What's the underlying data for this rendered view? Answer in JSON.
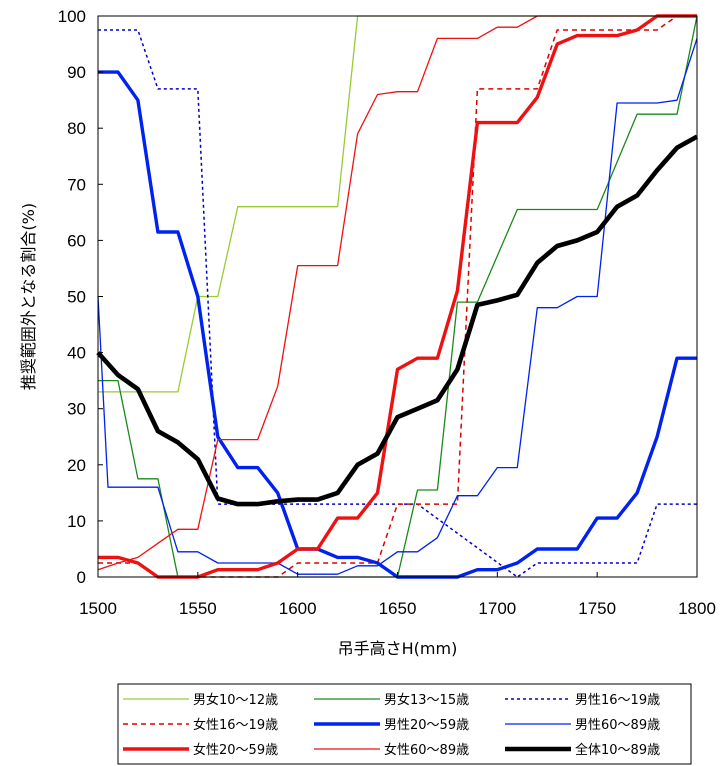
{
  "chart_data": {
    "type": "line",
    "xlabel": "吊手高さH(mm)",
    "ylabel": "推奨範囲外となる割合(%)",
    "xlim": [
      1500,
      1800
    ],
    "ylim": [
      0,
      100
    ],
    "xticks": [
      1500,
      1550,
      1600,
      1650,
      1700,
      1750,
      1800
    ],
    "yticks": [
      0,
      10,
      20,
      30,
      40,
      50,
      60,
      70,
      80,
      90,
      100
    ],
    "grid": false,
    "legend_position": "bottom",
    "series": [
      {
        "name": "男女10～12歳",
        "color": "#99cc33",
        "style": "solid",
        "width": 1.3,
        "points": [
          [
            1500,
            33
          ],
          [
            1540,
            33
          ],
          [
            1550,
            50
          ],
          [
            1560,
            50
          ],
          [
            1570,
            66
          ],
          [
            1620,
            66
          ],
          [
            1630,
            100
          ],
          [
            1800,
            100
          ]
        ]
      },
      {
        "name": "男女13～15歳",
        "color": "#1a8a1a",
        "style": "solid",
        "width": 1.3,
        "points": [
          [
            1500,
            35
          ],
          [
            1510,
            35
          ],
          [
            1520,
            17.5
          ],
          [
            1530,
            17.5
          ],
          [
            1540,
            0
          ],
          [
            1650,
            0
          ],
          [
            1660,
            15.5
          ],
          [
            1670,
            15.5
          ],
          [
            1680,
            49
          ],
          [
            1690,
            49
          ],
          [
            1710,
            65.5
          ],
          [
            1750,
            65.5
          ],
          [
            1770,
            82.5
          ],
          [
            1790,
            82.5
          ],
          [
            1800,
            100
          ]
        ]
      },
      {
        "name": "男性16～19歳",
        "color": "#0000cc",
        "style": "dotted",
        "width": 1.5,
        "points": [
          [
            1500,
            97.5
          ],
          [
            1520,
            97.5
          ],
          [
            1530,
            87
          ],
          [
            1550,
            87
          ],
          [
            1560,
            13
          ],
          [
            1660,
            13
          ],
          [
            1710,
            0
          ],
          [
            1720,
            2.5
          ],
          [
            1770,
            2.5
          ],
          [
            1780,
            13
          ],
          [
            1800,
            13
          ]
        ]
      },
      {
        "name": "女性16～19歳",
        "color": "#dd0000",
        "style": "dashed",
        "width": 1.5,
        "points": [
          [
            1500,
            2.5
          ],
          [
            1520,
            2.5
          ],
          [
            1530,
            0
          ],
          [
            1590,
            0
          ],
          [
            1600,
            2.5
          ],
          [
            1640,
            2.5
          ],
          [
            1650,
            13
          ],
          [
            1680,
            13
          ],
          [
            1690,
            87
          ],
          [
            1720,
            87
          ],
          [
            1730,
            97.5
          ],
          [
            1780,
            97.5
          ],
          [
            1790,
            100
          ],
          [
            1800,
            100
          ]
        ]
      },
      {
        "name": "男性20～59歳",
        "color": "#0022ee",
        "style": "solid",
        "width": 3.4,
        "points": [
          [
            1500,
            90
          ],
          [
            1510,
            90
          ],
          [
            1520,
            85
          ],
          [
            1530,
            61.5
          ],
          [
            1540,
            61.5
          ],
          [
            1550,
            50
          ],
          [
            1560,
            25
          ],
          [
            1570,
            19.5
          ],
          [
            1580,
            19.5
          ],
          [
            1590,
            15
          ],
          [
            1600,
            5
          ],
          [
            1610,
            5
          ],
          [
            1620,
            3.5
          ],
          [
            1630,
            3.5
          ],
          [
            1640,
            2.5
          ],
          [
            1650,
            0
          ],
          [
            1680,
            0
          ],
          [
            1690,
            1.3
          ],
          [
            1700,
            1.3
          ],
          [
            1710,
            2.5
          ],
          [
            1720,
            5
          ],
          [
            1740,
            5
          ],
          [
            1750,
            10.5
          ],
          [
            1760,
            10.5
          ],
          [
            1770,
            15
          ],
          [
            1780,
            25
          ],
          [
            1790,
            39
          ],
          [
            1800,
            39
          ]
        ]
      },
      {
        "name": "男性60～89歳",
        "color": "#0022ee",
        "style": "solid",
        "width": 1.3,
        "points": [
          [
            1500,
            50
          ],
          [
            1505,
            16
          ],
          [
            1520,
            16
          ],
          [
            1530,
            16
          ],
          [
            1540,
            4.5
          ],
          [
            1550,
            4.5
          ],
          [
            1560,
            2.5
          ],
          [
            1590,
            2.5
          ],
          [
            1600,
            0.5
          ],
          [
            1620,
            0.5
          ],
          [
            1630,
            2
          ],
          [
            1640,
            2
          ],
          [
            1650,
            4.5
          ],
          [
            1660,
            4.5
          ],
          [
            1670,
            7
          ],
          [
            1680,
            14.5
          ],
          [
            1690,
            14.5
          ],
          [
            1700,
            19.5
          ],
          [
            1710,
            19.5
          ],
          [
            1720,
            48
          ],
          [
            1730,
            48
          ],
          [
            1740,
            50
          ],
          [
            1750,
            50
          ],
          [
            1760,
            84.5
          ],
          [
            1780,
            84.5
          ],
          [
            1790,
            85
          ],
          [
            1800,
            96
          ]
        ]
      },
      {
        "name": "女性20～59歳",
        "color": "#ee1111",
        "style": "solid",
        "width": 3.4,
        "points": [
          [
            1500,
            3.5
          ],
          [
            1510,
            3.5
          ],
          [
            1520,
            2.5
          ],
          [
            1530,
            0
          ],
          [
            1550,
            0
          ],
          [
            1560,
            1.3
          ],
          [
            1580,
            1.3
          ],
          [
            1590,
            2.5
          ],
          [
            1600,
            5
          ],
          [
            1610,
            5
          ],
          [
            1620,
            10.5
          ],
          [
            1630,
            10.5
          ],
          [
            1640,
            15
          ],
          [
            1650,
            37
          ],
          [
            1660,
            39
          ],
          [
            1670,
            39
          ],
          [
            1680,
            51
          ],
          [
            1690,
            81
          ],
          [
            1710,
            81
          ],
          [
            1720,
            85.5
          ],
          [
            1730,
            95
          ],
          [
            1740,
            96.5
          ],
          [
            1760,
            96.5
          ],
          [
            1770,
            97.5
          ],
          [
            1780,
            100
          ],
          [
            1800,
            100
          ]
        ]
      },
      {
        "name": "女性60～89歳",
        "color": "#ee1111",
        "style": "solid",
        "width": 1.3,
        "points": [
          [
            1500,
            1.3
          ],
          [
            1510,
            2.5
          ],
          [
            1520,
            3.5
          ],
          [
            1530,
            6
          ],
          [
            1540,
            8.5
          ],
          [
            1550,
            8.5
          ],
          [
            1560,
            24.5
          ],
          [
            1580,
            24.5
          ],
          [
            1590,
            34
          ],
          [
            1600,
            55.5
          ],
          [
            1620,
            55.5
          ],
          [
            1630,
            79
          ],
          [
            1640,
            86
          ],
          [
            1650,
            86.5
          ],
          [
            1660,
            86.5
          ],
          [
            1670,
            96
          ],
          [
            1690,
            96
          ],
          [
            1700,
            98
          ],
          [
            1710,
            98
          ],
          [
            1720,
            100
          ],
          [
            1800,
            100
          ]
        ]
      },
      {
        "name": "全体10～89歳",
        "color": "#000000",
        "style": "solid",
        "width": 4.6,
        "points": [
          [
            1500,
            40
          ],
          [
            1510,
            36
          ],
          [
            1520,
            33.5
          ],
          [
            1530,
            26
          ],
          [
            1540,
            24
          ],
          [
            1550,
            21
          ],
          [
            1560,
            14
          ],
          [
            1570,
            13
          ],
          [
            1580,
            13
          ],
          [
            1590,
            13.5
          ],
          [
            1600,
            13.8
          ],
          [
            1610,
            13.8
          ],
          [
            1620,
            15
          ],
          [
            1630,
            20
          ],
          [
            1640,
            22
          ],
          [
            1650,
            28.5
          ],
          [
            1660,
            30
          ],
          [
            1670,
            31.5
          ],
          [
            1680,
            37
          ],
          [
            1690,
            48.5
          ],
          [
            1700,
            49.3
          ],
          [
            1710,
            50.3
          ],
          [
            1720,
            56
          ],
          [
            1730,
            59
          ],
          [
            1740,
            60
          ],
          [
            1750,
            61.5
          ],
          [
            1760,
            66
          ],
          [
            1770,
            68
          ],
          [
            1780,
            72.5
          ],
          [
            1790,
            76.5
          ],
          [
            1800,
            78.5
          ]
        ]
      }
    ]
  }
}
